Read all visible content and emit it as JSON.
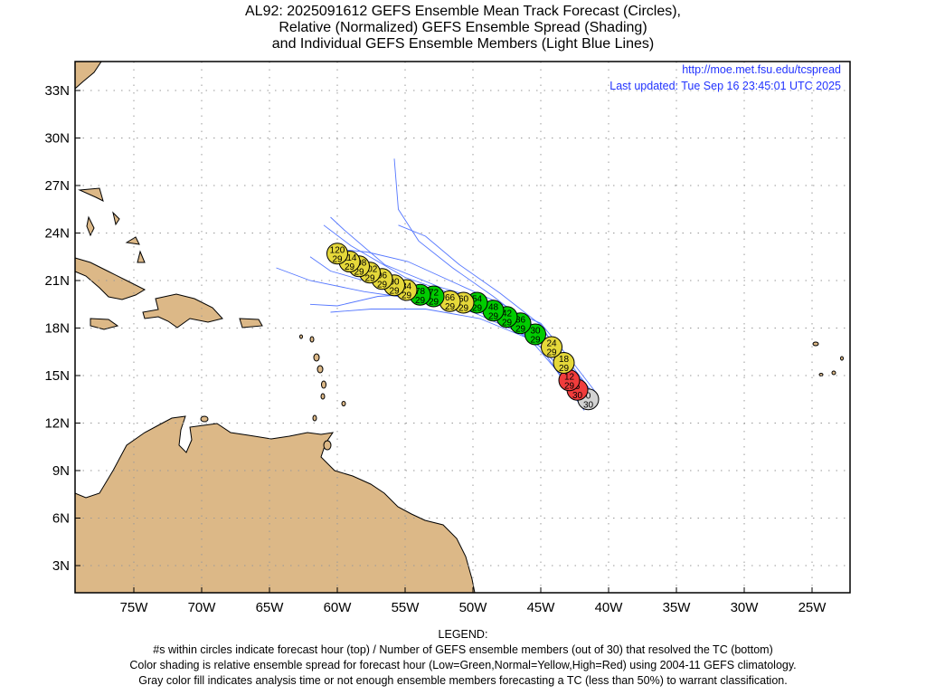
{
  "title": {
    "line1": "AL92: 2025091612 GEFS Ensemble Mean Track Forecast (Circles),",
    "line2": "Relative (Normalized) GEFS Ensemble Spread (Shading)",
    "line3": "and Individual GEFS Ensemble Members (Light Blue Lines)"
  },
  "info": {
    "url": "http://moe.met.fsu.edu/tcspread",
    "updated": "Last updated: Tue Sep 16 23:45:01 UTC 2025"
  },
  "legend": {
    "heading": "LEGEND:",
    "line1": "#s within circles indicate forecast hour (top) / Number of GEFS ensemble members (out of 30) that resolved the TC (bottom)",
    "line2": "Color shading is relative ensemble spread for forecast hour (Low=Green,Normal=Yellow,High=Red) using 2004-11 GEFS climatology.",
    "line3": "Gray color fill indicates analysis time or not enough ensemble members forecasting a TC (less than 50%) to warrant classification."
  },
  "colors": {
    "green": "#00cc00",
    "yellow": "#e5d83a",
    "red": "#f03c3c",
    "gray": "#d3d3d3",
    "land": "#dcb887",
    "member": "#5577ff"
  },
  "chart_data": {
    "type": "scatter",
    "lon_ticks": [
      {
        "v": -75,
        "label": "75W"
      },
      {
        "v": -70,
        "label": "70W"
      },
      {
        "v": -65,
        "label": "65W"
      },
      {
        "v": -60,
        "label": "60W"
      },
      {
        "v": -55,
        "label": "55W"
      },
      {
        "v": -50,
        "label": "50W"
      },
      {
        "v": -45,
        "label": "45W"
      },
      {
        "v": -40,
        "label": "40W"
      },
      {
        "v": -35,
        "label": "35W"
      },
      {
        "v": -30,
        "label": "30W"
      },
      {
        "v": -25,
        "label": "25W"
      }
    ],
    "lat_ticks": [
      {
        "v": 3,
        "label": "3N"
      },
      {
        "v": 6,
        "label": "6N"
      },
      {
        "v": 9,
        "label": "9N"
      },
      {
        "v": 12,
        "label": "12N"
      },
      {
        "v": 15,
        "label": "15N"
      },
      {
        "v": 18,
        "label": "18N"
      },
      {
        "v": 21,
        "label": "21N"
      },
      {
        "v": 24,
        "label": "24N"
      },
      {
        "v": 27,
        "label": "27N"
      },
      {
        "v": 30,
        "label": "30N"
      },
      {
        "v": 33,
        "label": "33N"
      }
    ],
    "lon_range": [
      -79.3,
      -22.2
    ],
    "lat_range": [
      1.3,
      34.8
    ],
    "grid": true,
    "mean_track": [
      {
        "hour": "0",
        "members": "30",
        "lon": -41.5,
        "lat": 13.5,
        "spread": "gray"
      },
      {
        "hour": "6",
        "members": "30",
        "lon": -42.3,
        "lat": 14.1,
        "spread": "red"
      },
      {
        "hour": "12",
        "members": "29",
        "lon": -42.9,
        "lat": 14.7,
        "spread": "red"
      },
      {
        "hour": "18",
        "members": "29",
        "lon": -43.3,
        "lat": 15.8,
        "spread": "yellow"
      },
      {
        "hour": "24",
        "members": "29",
        "lon": -44.2,
        "lat": 16.8,
        "spread": "yellow"
      },
      {
        "hour": "30",
        "members": "29",
        "lon": -45.4,
        "lat": 17.6,
        "spread": "green"
      },
      {
        "hour": "36",
        "members": "29",
        "lon": -46.5,
        "lat": 18.3,
        "spread": "green"
      },
      {
        "hour": "42",
        "members": "29",
        "lon": -47.5,
        "lat": 18.7,
        "spread": "green"
      },
      {
        "hour": "48",
        "members": "29",
        "lon": -48.5,
        "lat": 19.1,
        "spread": "green"
      },
      {
        "hour": "54",
        "members": "29",
        "lon": -49.7,
        "lat": 19.6,
        "spread": "green"
      },
      {
        "hour": "60",
        "members": "29",
        "lon": -50.7,
        "lat": 19.6,
        "spread": "yellow"
      },
      {
        "hour": "66",
        "members": "29",
        "lon": -51.7,
        "lat": 19.7,
        "spread": "yellow"
      },
      {
        "hour": "72",
        "members": "29",
        "lon": -52.9,
        "lat": 20.0,
        "spread": "green"
      },
      {
        "hour": "78",
        "members": "29",
        "lon": -53.9,
        "lat": 20.1,
        "spread": "green"
      },
      {
        "hour": "84",
        "members": "29",
        "lon": -54.9,
        "lat": 20.4,
        "spread": "yellow"
      },
      {
        "hour": "90",
        "members": "29",
        "lon": -55.8,
        "lat": 20.7,
        "spread": "yellow"
      },
      {
        "hour": "96",
        "members": "29",
        "lon": -56.7,
        "lat": 21.1,
        "spread": "yellow"
      },
      {
        "hour": "102",
        "members": "29",
        "lon": -57.6,
        "lat": 21.5,
        "spread": "yellow"
      },
      {
        "hour": "108",
        "members": "29",
        "lon": -58.4,
        "lat": 21.9,
        "spread": "yellow"
      },
      {
        "hour": "114",
        "members": "29",
        "lon": -59.1,
        "lat": 22.2,
        "spread": "yellow"
      },
      {
        "hour": "120",
        "members": "29",
        "lon": -60.0,
        "lat": 22.7,
        "spread": "yellow"
      }
    ],
    "members": [
      [
        [
          -41.0,
          13.8
        ],
        [
          -42.5,
          15.2
        ],
        [
          -44.0,
          17.0
        ],
        [
          -47.0,
          18.8
        ],
        [
          -51.0,
          20.0
        ],
        [
          -55.0,
          21.2
        ],
        [
          -59.0,
          23.2
        ],
        [
          -61.0,
          24.5
        ]
      ],
      [
        [
          -41.3,
          13.2
        ],
        [
          -43.0,
          15.5
        ],
        [
          -45.5,
          18.0
        ],
        [
          -48.5,
          20.0
        ],
        [
          -51.5,
          21.8
        ],
        [
          -54.0,
          23.5
        ],
        [
          -55.5,
          25.5
        ],
        [
          -55.8,
          28.7
        ]
      ],
      [
        [
          -41.6,
          13.4
        ],
        [
          -43.2,
          15.8
        ],
        [
          -45.0,
          18.2
        ],
        [
          -48.0,
          20.2
        ],
        [
          -51.0,
          22.0
        ],
        [
          -53.5,
          23.8
        ],
        [
          -55.5,
          24.5
        ]
      ],
      [
        [
          -42.0,
          13.0
        ],
        [
          -43.5,
          15.0
        ],
        [
          -46.0,
          17.5
        ],
        [
          -50.0,
          19.0
        ],
        [
          -54.0,
          19.8
        ],
        [
          -58.0,
          20.3
        ],
        [
          -62.0,
          21.0
        ],
        [
          -64.5,
          21.8
        ]
      ],
      [
        [
          -41.2,
          13.6
        ],
        [
          -43.0,
          15.0
        ],
        [
          -45.5,
          17.2
        ],
        [
          -49.5,
          18.6
        ],
        [
          -53.5,
          19.2
        ],
        [
          -57.5,
          19.2
        ],
        [
          -60.5,
          19.0
        ]
      ],
      [
        [
          -41.8,
          12.8
        ],
        [
          -43.2,
          14.5
        ],
        [
          -45.0,
          16.8
        ],
        [
          -48.0,
          18.5
        ],
        [
          -52.0,
          19.8
        ],
        [
          -56.0,
          20.5
        ],
        [
          -60.5,
          21.6
        ],
        [
          -62.0,
          22.5
        ]
      ],
      [
        [
          -41.0,
          14.0
        ],
        [
          -42.8,
          16.0
        ],
        [
          -45.0,
          18.3
        ],
        [
          -48.5,
          19.6
        ],
        [
          -52.5,
          20.6
        ],
        [
          -56.5,
          22.0
        ],
        [
          -59.5,
          24.2
        ],
        [
          -60.5,
          25.0
        ]
      ],
      [
        [
          -41.5,
          13.3
        ],
        [
          -43.0,
          15.2
        ],
        [
          -45.2,
          17.7
        ],
        [
          -48.8,
          19.4
        ],
        [
          -53.0,
          20.2
        ],
        [
          -57.0,
          20.0
        ],
        [
          -60.0,
          19.4
        ],
        [
          -62.0,
          19.5
        ]
      ],
      [
        [
          -40.8,
          13.5
        ],
        [
          -42.6,
          15.5
        ],
        [
          -44.6,
          17.6
        ],
        [
          -47.6,
          19.4
        ],
        [
          -51.2,
          20.8
        ],
        [
          -54.8,
          22.2
        ],
        [
          -57.8,
          22.8
        ],
        [
          -60.2,
          23.0
        ]
      ]
    ]
  }
}
